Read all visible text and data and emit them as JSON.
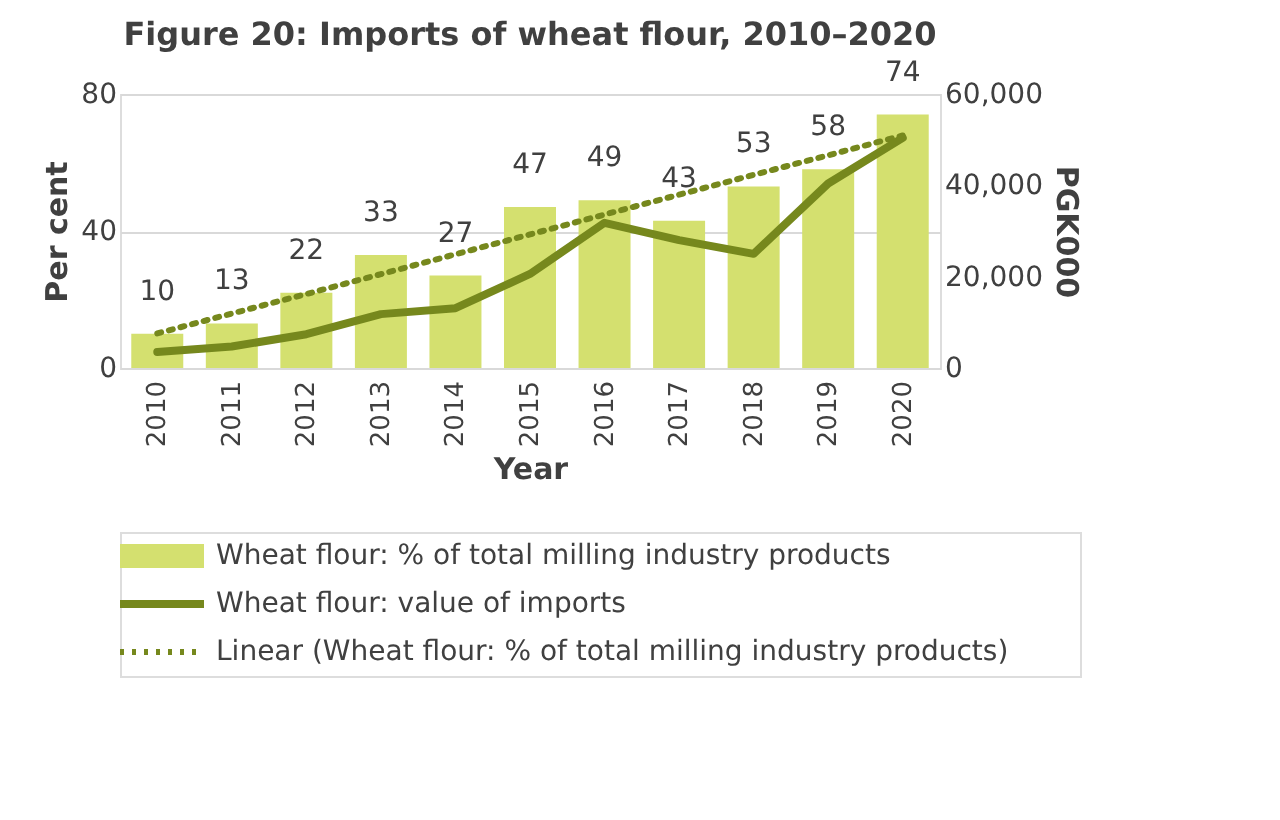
{
  "chart_data": {
    "type": "bar",
    "title": "Figure 20: Imports of wheat flour, 2010–2020",
    "xlabel": "Year",
    "ylabel": "Per cent",
    "y2label": "PGK000",
    "categories": [
      "2010",
      "2011",
      "2012",
      "2013",
      "2014",
      "2015",
      "2016",
      "2017",
      "2018",
      "2019",
      "2020"
    ],
    "series": [
      {
        "name": "Wheat flour: % of total milling industry products",
        "color": "#d4e06f",
        "values": [
          10,
          13,
          22,
          33,
          27,
          47,
          49,
          43,
          53,
          58,
          74
        ],
        "value_labels": [
          "10",
          "13",
          "22",
          "33",
          "27",
          "47",
          "49",
          "43",
          "53",
          "58",
          "74"
        ]
      },
      {
        "name": "Wheat flour: value of imports",
        "type": "line",
        "axis": "y2",
        "color": "#76881d",
        "line_style": "solid",
        "values": [
          3500,
          4700,
          7400,
          11800,
          13100,
          20600,
          31800,
          28000,
          25000,
          40400,
          50400
        ]
      },
      {
        "name": "Linear (Wheat flour: % of total milling industry products)",
        "type": "line",
        "color": "#76881d",
        "line_style": "dotted",
        "values": [
          10.1,
          15.9,
          21.6,
          27.4,
          33.2,
          39.0,
          44.8,
          50.6,
          56.4,
          62.1,
          67.9
        ]
      }
    ],
    "ylim": [
      0,
      80
    ],
    "yticks": [
      0,
      40,
      80
    ],
    "y2lim": [
      0,
      60000
    ],
    "y2ticks": [
      0,
      {
        "value": 20000,
        "label": "20,000"
      },
      {
        "value": 40000,
        "label": "40,000"
      },
      {
        "value": 60000,
        "label": "60,000"
      }
    ],
    "grid": "y",
    "legend": "bottom"
  }
}
